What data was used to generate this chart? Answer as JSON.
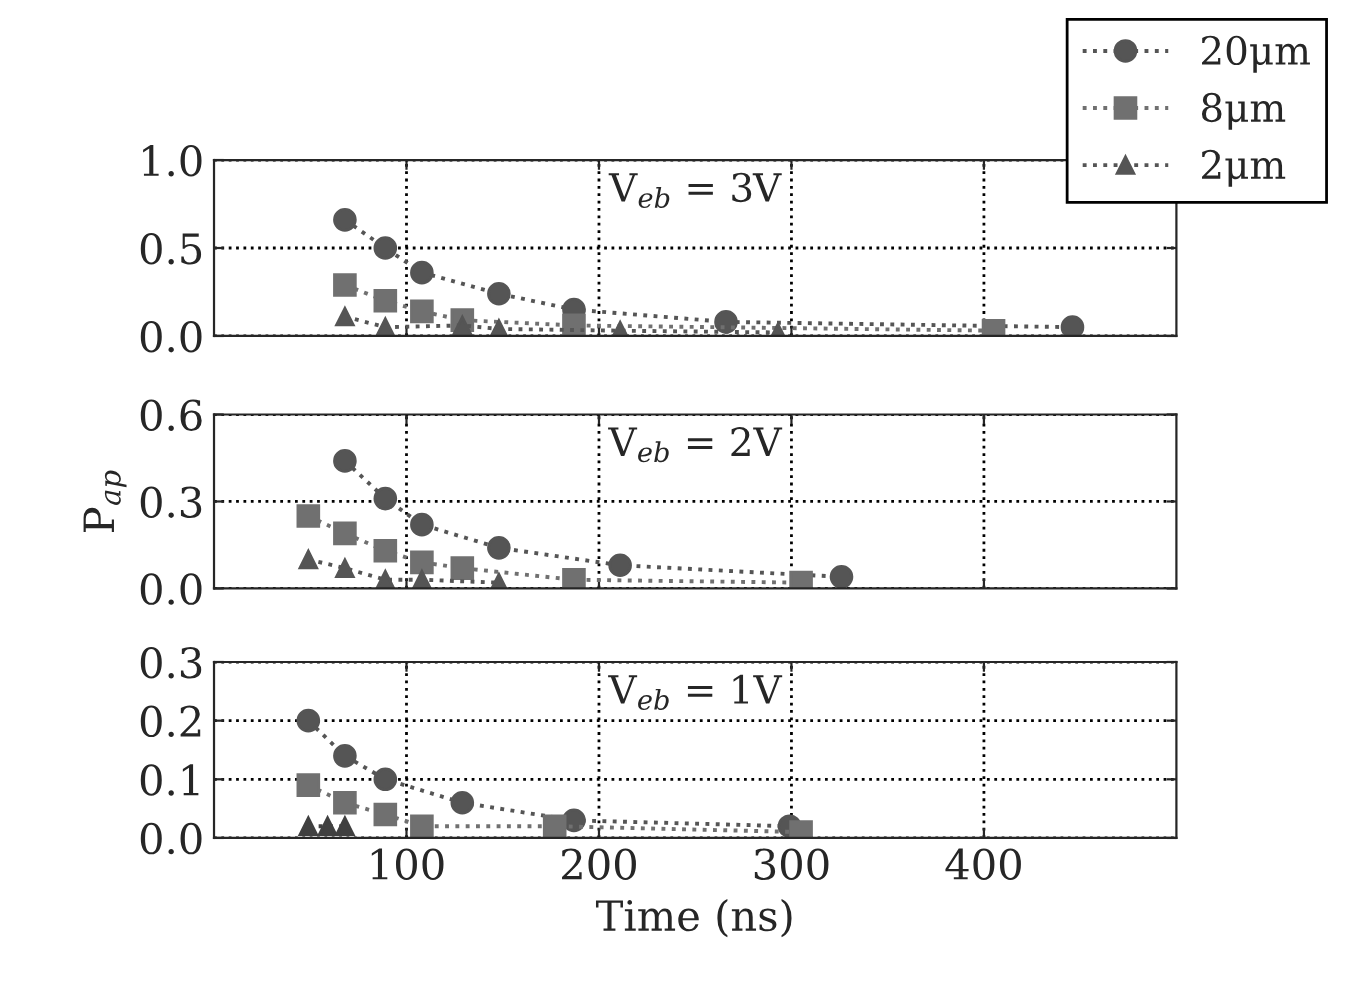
{
  "chart_data": [
    {
      "type": "line",
      "annotations": [
        "V$_{eb}$ = 3V"
      ],
      "xlim": [
        0,
        500
      ],
      "xticks": [
        100,
        200,
        300,
        400
      ],
      "ylim": [
        0,
        1.0
      ],
      "yticks": [
        {
          "value": 0,
          "label": "0.0"
        },
        {
          "value": 0.5,
          "label": "0.5"
        },
        {
          "value": 1.0,
          "label": "1.0"
        }
      ],
      "tick_labels": "y",
      "grid": true,
      "legend": "top right",
      "line_style": "dotted",
      "series": [
        {
          "name": "20μm",
          "color": "#555555",
          "marker": "circle",
          "x": [
            68,
            89,
            108,
            148,
            187,
            266,
            446
          ],
          "values": [
            0.66,
            0.5,
            0.36,
            0.24,
            0.15,
            0.08,
            0.05
          ]
        },
        {
          "name": "8μm",
          "color": "#707070",
          "marker": "square",
          "x": [
            68,
            89,
            108,
            129,
            187,
            405
          ],
          "values": [
            0.29,
            0.2,
            0.14,
            0.09,
            0.06,
            0.03
          ]
        },
        {
          "name": "2μm",
          "color": "#555555",
          "marker": "triangle",
          "x": [
            68,
            89,
            129,
            148,
            211,
            293
          ],
          "values": [
            0.11,
            0.05,
            0.06,
            0.04,
            0.03,
            0.02
          ]
        }
      ]
    },
    {
      "type": "line",
      "annotations": [
        "V$_{eb}$ = 2V"
      ],
      "ylabel": "P$_{ap}$",
      "xlim": [
        0,
        500
      ],
      "xticks": [
        100,
        200,
        300,
        400
      ],
      "ylim": [
        0,
        0.6
      ],
      "yticks": [
        {
          "value": 0,
          "label": "0.0"
        },
        0.3,
        0.6
      ],
      "tick_labels": "y",
      "grid": true,
      "line_style": "dotted",
      "series": [
        {
          "color": "#555555",
          "marker": "circle",
          "x": [
            68,
            89,
            108,
            148,
            211,
            326
          ],
          "values": [
            0.44,
            0.31,
            0.22,
            0.14,
            0.08,
            0.04
          ]
        },
        {
          "color": "#707070",
          "marker": "square",
          "x": [
            49,
            68,
            89,
            108,
            129,
            187,
            305
          ],
          "values": [
            0.25,
            0.19,
            0.13,
            0.09,
            0.07,
            0.03,
            0.02
          ]
        },
        {
          "color": "#555555",
          "marker": "triangle",
          "x": [
            49,
            68,
            89,
            108,
            148
          ],
          "values": [
            0.1,
            0.07,
            0.03,
            0.03,
            0.02
          ]
        }
      ]
    },
    {
      "type": "line",
      "annotations": [
        "V$_{eb}$ = 1V"
      ],
      "xlabel": "Time (ns)",
      "xlim": [
        0,
        500
      ],
      "xticks": [
        100,
        200,
        300,
        400
      ],
      "ylim": [
        0,
        0.3
      ],
      "yticks": [
        {
          "value": 0,
          "label": "0.0"
        },
        0.1,
        0.2,
        0.3
      ],
      "grid": true,
      "line_style": "dotted",
      "series": [
        {
          "color": "#555555",
          "marker": "circle",
          "x": [
            49,
            68,
            89,
            129,
            187,
            299
          ],
          "values": [
            0.2,
            0.14,
            0.1,
            0.06,
            0.03,
            0.02
          ]
        },
        {
          "color": "#707070",
          "marker": "square",
          "x": [
            49,
            68,
            89,
            108,
            177,
            305
          ],
          "values": [
            0.09,
            0.06,
            0.04,
            0.02,
            0.02,
            0.01
          ]
        },
        {
          "color": "#404040",
          "marker": "triangle",
          "x": [
            49,
            59,
            68
          ],
          "values": [
            0.02,
            0.02,
            0.02
          ]
        }
      ]
    }
  ]
}
